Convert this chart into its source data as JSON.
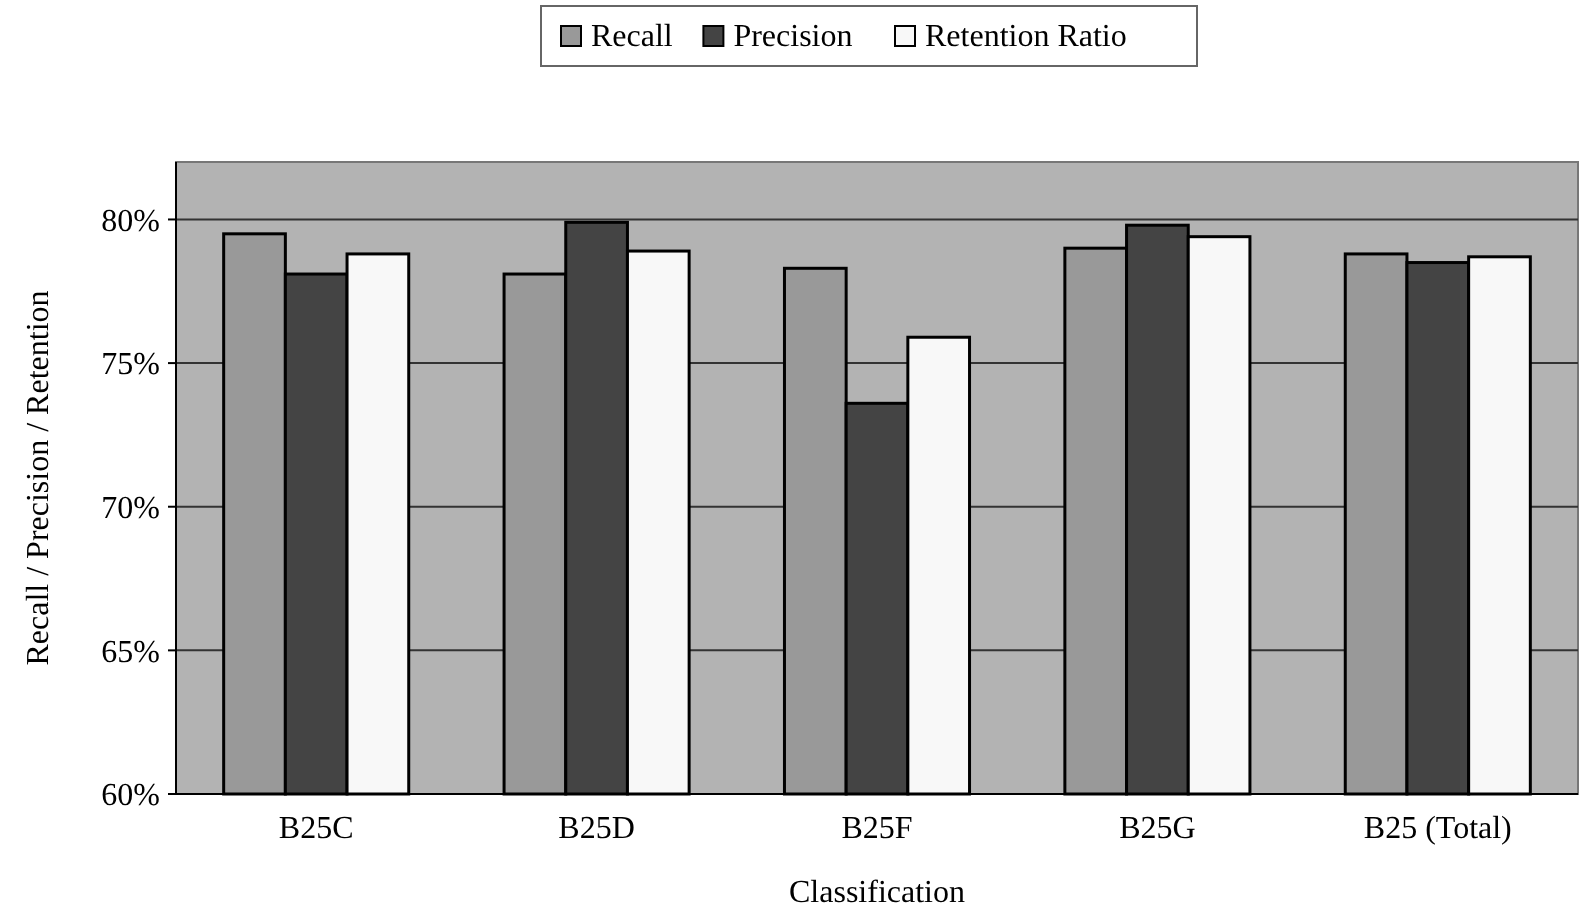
{
  "chart_data": {
    "type": "bar",
    "xlabel": "Classification",
    "ylabel": "Recall / Precision / Retention",
    "categories": [
      "B25C",
      "B25D",
      "B25F",
      "B25G",
      "B25 (Total)"
    ],
    "series": [
      {
        "name": "Recall",
        "color": "#999999",
        "values": [
          79.5,
          78.1,
          78.3,
          79.0,
          78.8
        ]
      },
      {
        "name": "Precision",
        "color": "#444444",
        "values": [
          78.1,
          79.9,
          73.6,
          79.8,
          78.5
        ]
      },
      {
        "name": "Retention Ratio",
        "color": "#f8f8f8",
        "values": [
          78.8,
          78.9,
          75.9,
          79.4,
          78.7
        ]
      }
    ],
    "ylim": [
      60,
      82
    ],
    "yticks": [
      {
        "value": 60,
        "label": "60%"
      },
      {
        "value": 65,
        "label": "65%"
      },
      {
        "value": 70,
        "label": "70%"
      },
      {
        "value": 75,
        "label": "75%"
      },
      {
        "value": 80,
        "label": "80%"
      }
    ],
    "grid": "y",
    "legend": "top"
  }
}
